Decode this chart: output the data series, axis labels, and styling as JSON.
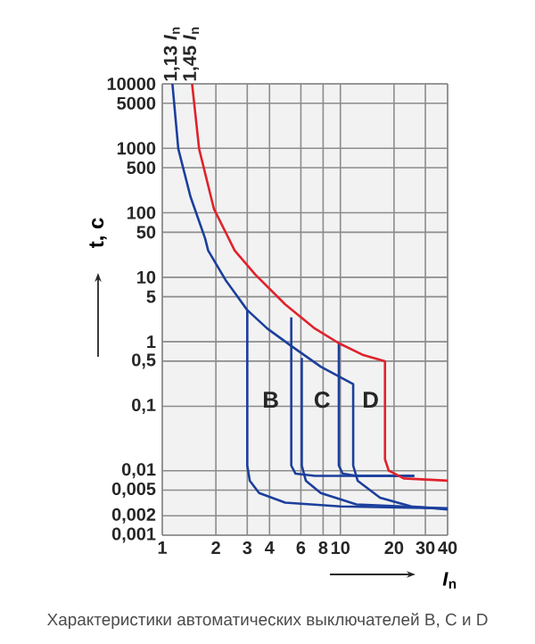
{
  "chart_data": {
    "type": "line",
    "xlabel": "*I*$_{n}$",
    "ylabel": "t, c",
    "xlim": [
      1,
      40
    ],
    "ylim": [
      0.001,
      10000
    ],
    "log": "xy",
    "grid": true,
    "xticks": [
      1,
      2,
      3,
      4,
      6,
      8,
      10,
      20,
      30,
      40
    ],
    "yticks": [
      {
        "value": 0.001,
        "label": "0,001"
      },
      {
        "value": 0.002,
        "label": "0,002"
      },
      {
        "value": 0.005,
        "label": "0,005"
      },
      {
        "value": 0.01,
        "label": "0,01"
      },
      {
        "value": 0.1,
        "label": "0,1"
      },
      {
        "value": 0.5,
        "label": "0,5"
      },
      1,
      5,
      10,
      50,
      100,
      500,
      1000,
      5000,
      10000
    ],
    "series": [
      {
        "color": "#1b3f9c",
        "x": [
          1.14,
          1.23,
          1.44,
          1.74,
          1.81,
          2.27,
          3.0,
          3.89,
          5.3,
          7.76,
          11.8,
          11.8,
          12.5,
          16.7,
          25,
          40
        ],
        "values": [
          10000,
          980,
          178,
          40,
          26,
          9,
          3.1,
          1.6,
          0.86,
          0.41,
          0.22,
          0.012,
          0.007,
          0.0038,
          0.0028,
          0.0025
        ]
      },
      {
        "color": "#1b3f9c",
        "x": [
          3,
          3,
          3.1,
          3.5,
          4.9,
          10,
          40
        ],
        "values": [
          3.1,
          0.012,
          0.007,
          0.0045,
          0.0032,
          0.0028,
          0.0026
        ]
      },
      {
        "color": "#1b3f9c",
        "x": [
          5.3,
          5.3,
          5.6,
          7.2,
          26
        ],
        "values": [
          2.4,
          0.012,
          0.009,
          0.0083,
          0.0083
        ]
      },
      {
        "color": "#1b3f9c",
        "x": [
          6.07,
          6.07,
          6.4,
          7.76,
          12.3,
          40
        ],
        "values": [
          0.56,
          0.012,
          0.007,
          0.0045,
          0.003,
          0.0026
        ]
      },
      {
        "color": "#1b3f9c",
        "x": [
          9.8,
          9.8,
          10.3,
          12.3,
          26
        ],
        "values": [
          0.95,
          0.012,
          0.009,
          0.0083,
          0.0083
        ]
      },
      {
        "color": "#e0222b",
        "x": [
          1.47,
          1.61,
          1.95,
          2.55,
          3.33,
          4.9,
          7.2,
          9.8,
          13.3,
          17.8,
          17.8,
          18.7,
          22.7,
          40
        ],
        "values": [
          10000,
          980,
          115,
          26,
          11,
          3.8,
          1.6,
          0.95,
          0.63,
          0.5,
          0.015,
          0.01,
          0.0076,
          0.007
        ]
      }
    ],
    "annotations": [
      {
        "text": "1,13 *I*$_{n}$",
        "x": 1.13,
        "y": 10000
      },
      {
        "text": "1,45 *I*$_{n}$",
        "x": 1.45,
        "y": 10000
      },
      "B",
      "C",
      "D",
      "Характеристики автоматических выключателей B, C и D"
    ]
  }
}
